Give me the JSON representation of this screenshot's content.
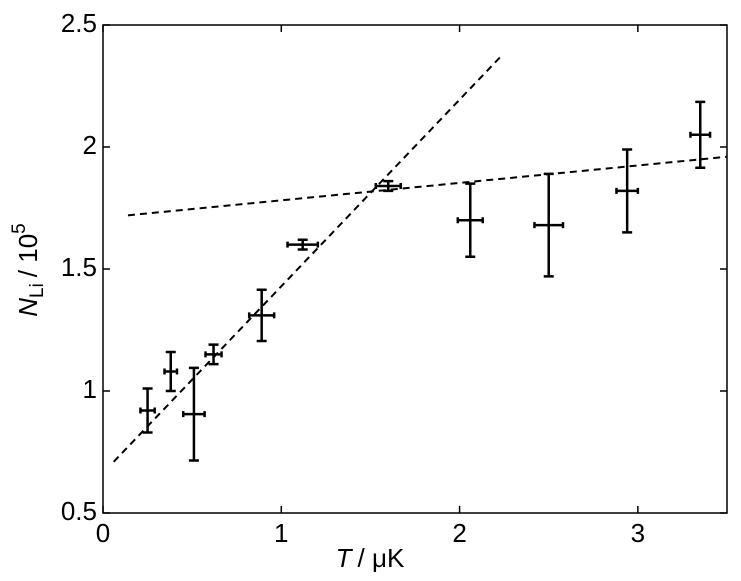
{
  "chart_data": {
    "type": "scatter",
    "xlabel": {
      "var": "T",
      "unit": "/ μK"
    },
    "ylabel": {
      "var": "N",
      "sub": "Li",
      "unit": "/ 10",
      "sup": "5"
    },
    "xlim": [
      0,
      3.5
    ],
    "ylim": [
      0.5,
      2.5
    ],
    "xticks": [
      0,
      1,
      2,
      3
    ],
    "yticks": [
      0.5,
      1,
      1.5,
      2,
      2.5
    ],
    "series": [
      {
        "color": "#000000",
        "x": [
          0.25,
          0.38,
          0.51,
          0.62,
          0.89,
          1.12,
          1.6,
          2.06,
          2.5,
          2.94,
          3.35
        ],
        "values": [
          0.92,
          1.08,
          0.905,
          1.15,
          1.31,
          1.6,
          1.84,
          1.7,
          1.68,
          1.82,
          2.05
        ],
        "xerr": [
          0.04,
          0.035,
          0.06,
          0.045,
          0.07,
          0.085,
          0.07,
          0.07,
          0.08,
          0.06,
          0.055
        ],
        "yerr": [
          0.09,
          0.08,
          0.19,
          0.04,
          0.105,
          0.02,
          0.02,
          0.15,
          0.21,
          0.17,
          0.135
        ]
      }
    ],
    "lines": [
      {
        "x": [
          0.06,
          2.23
        ],
        "y": [
          0.71,
          2.37
        ],
        "color": "#000000",
        "style": "dashed"
      },
      {
        "x": [
          0.14,
          3.5
        ],
        "y": [
          1.72,
          1.96
        ],
        "color": "#000000",
        "style": "dashed"
      }
    ]
  }
}
